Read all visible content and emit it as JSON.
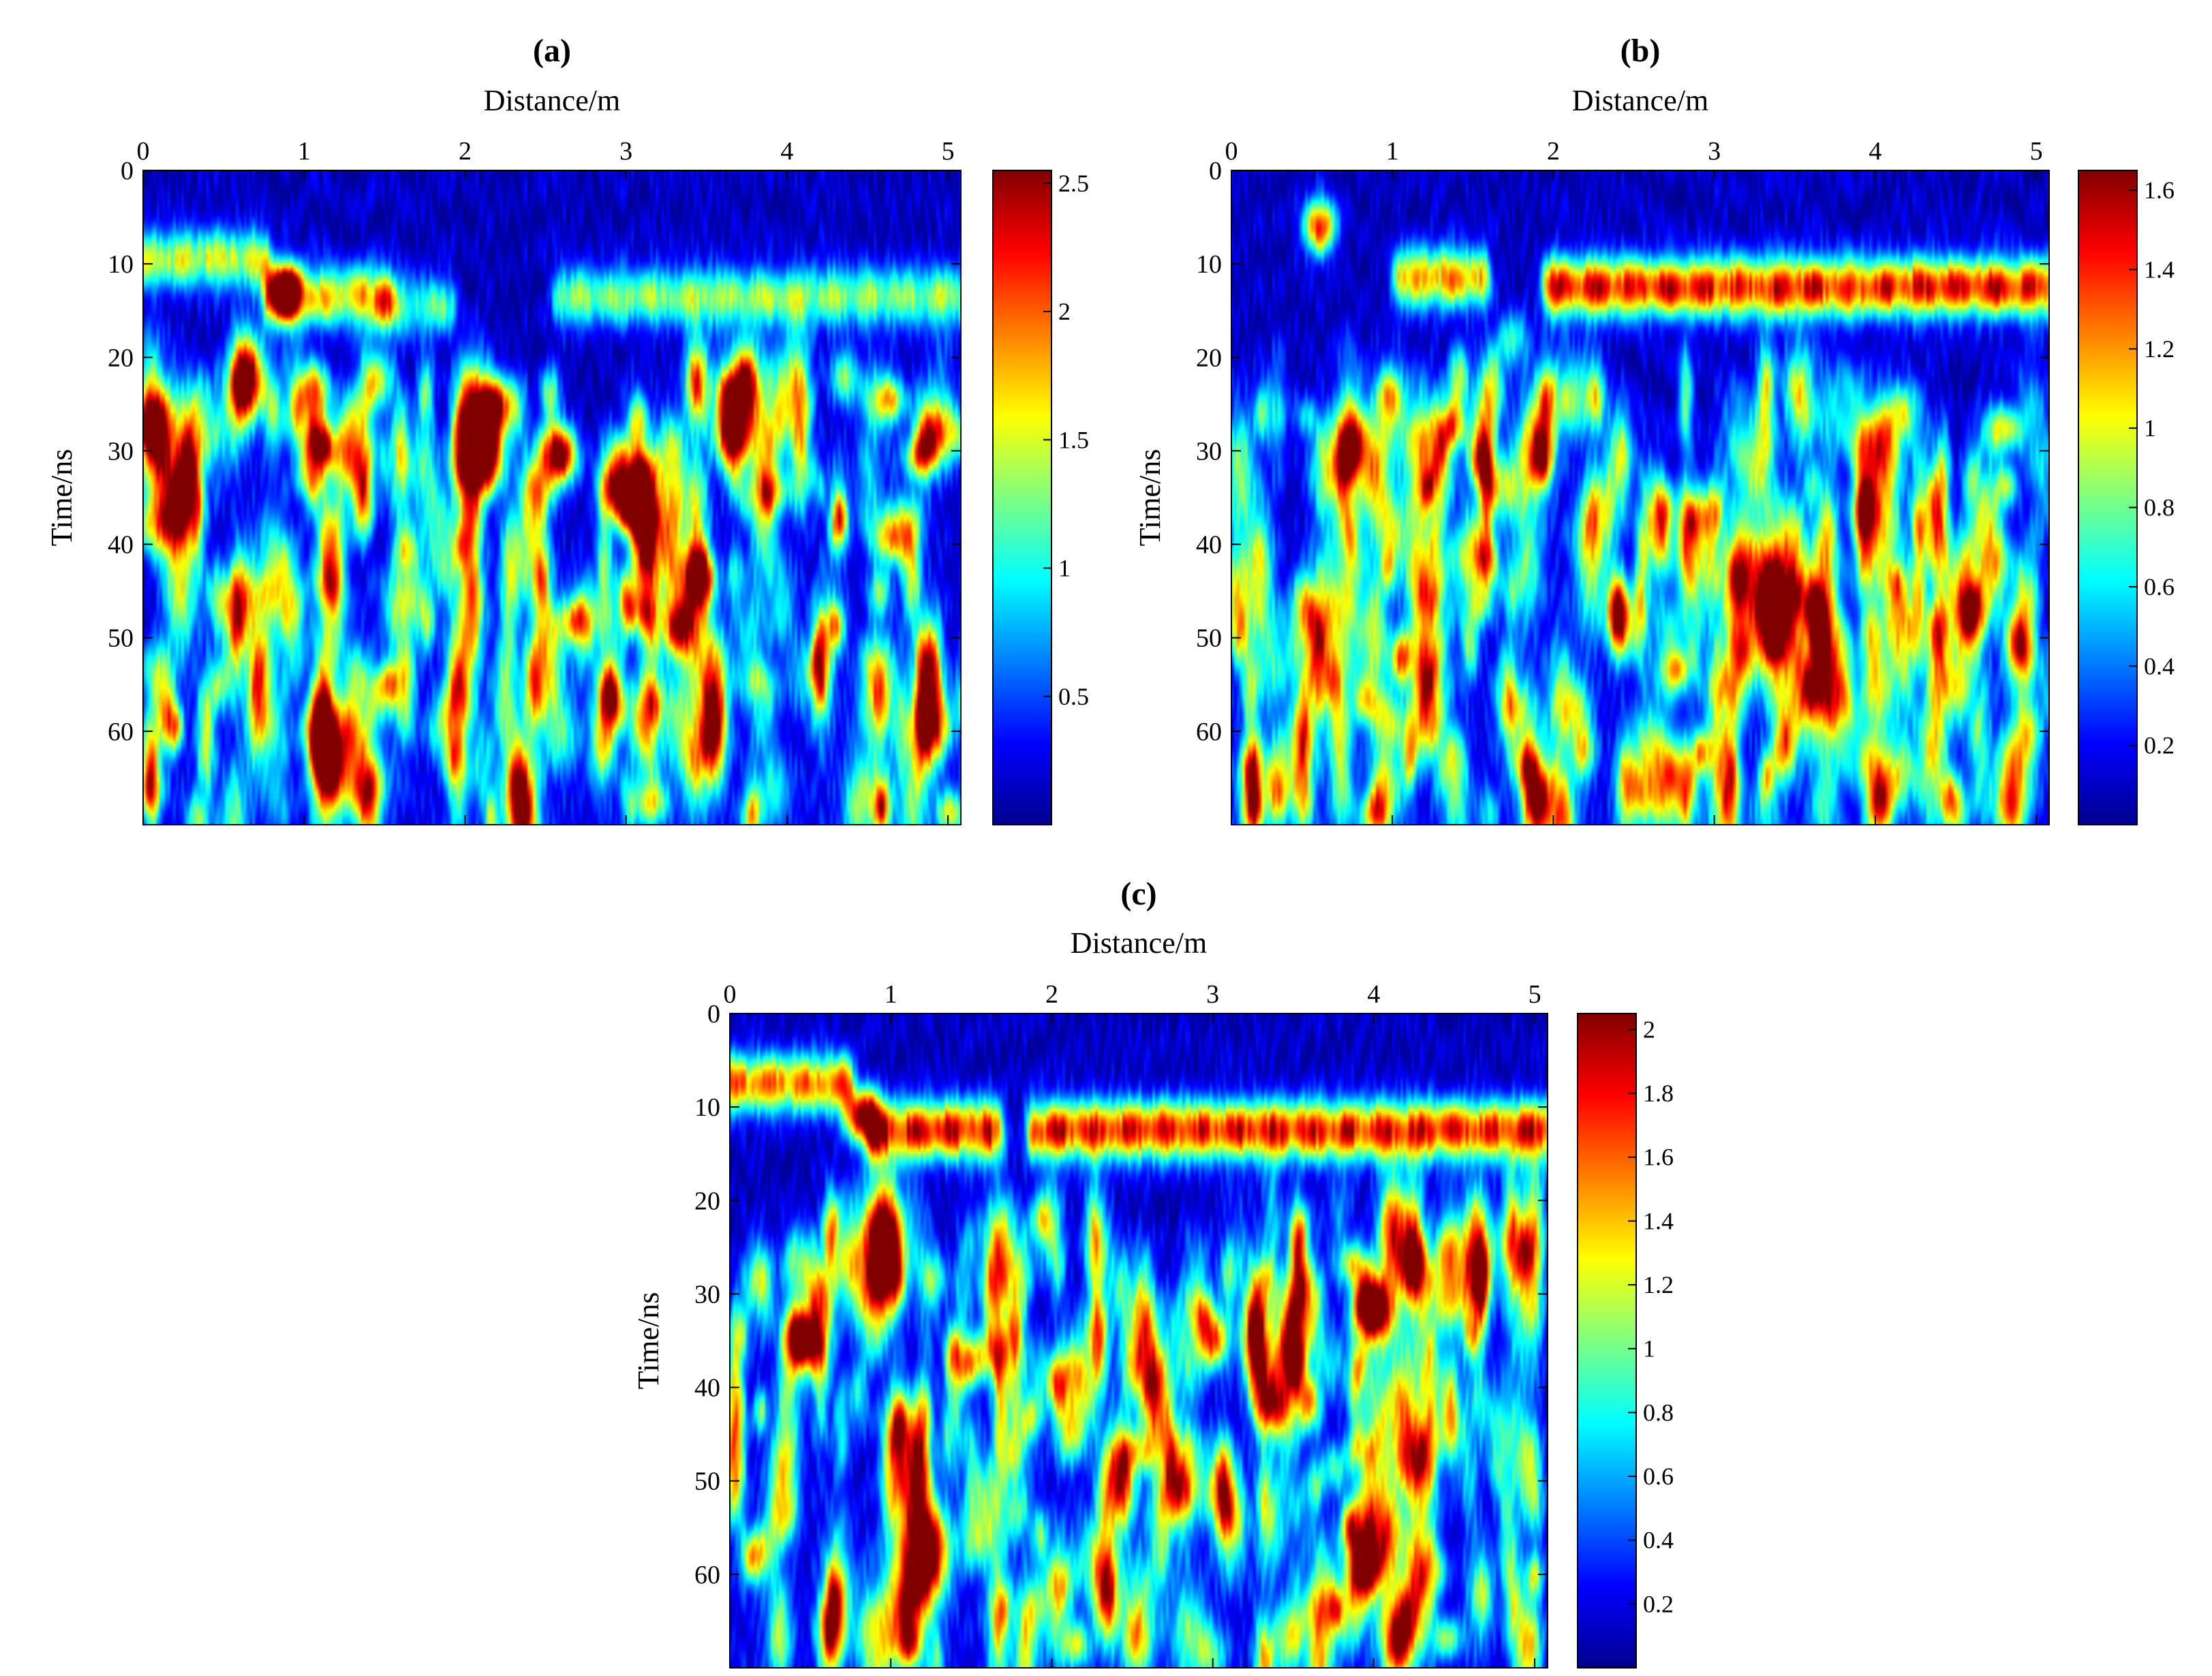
{
  "chart_data": [
    {
      "id": "a",
      "type": "heatmap",
      "title": "(a)",
      "xlabel": "Distance/m",
      "ylabel": "Time/ns",
      "x_ticks": [
        "0",
        "1",
        "2",
        "3",
        "4",
        "5"
      ],
      "y_ticks": [
        "0",
        "10",
        "20",
        "30",
        "40",
        "50",
        "60"
      ],
      "xlim": [
        0,
        5.08
      ],
      "ylim": [
        0,
        70
      ],
      "colormap": "jet",
      "colorbar": {
        "ticks": [
          "0.5",
          "1",
          "1.5",
          "2",
          "2.5"
        ],
        "range": [
          0.0,
          2.55
        ]
      },
      "features": [
        {
          "label": "reflector",
          "kind": "band",
          "x_start": 0.0,
          "x_end": 0.75,
          "y": 9.5,
          "amplitude": 1.45
        },
        {
          "label": "reflector",
          "kind": "band",
          "x_start": 0.8,
          "x_end": 1.5,
          "y": 13.5,
          "amplitude": 1.75
        },
        {
          "label": "reflector",
          "kind": "band",
          "x_start": 1.5,
          "x_end": 1.9,
          "y": 14.5,
          "amplitude": 1.1
        },
        {
          "label": "reflector",
          "kind": "band",
          "x_start": 2.6,
          "x_end": 5.08,
          "y": 13.5,
          "amplitude": 1.3
        },
        {
          "label": "target",
          "kind": "spot",
          "x": 0.88,
          "y": 13.0,
          "amplitude": 2.4
        },
        {
          "label": "target",
          "kind": "spot",
          "x": 2.2,
          "y": 25.0,
          "amplitude": 1.7
        },
        {
          "label": "target",
          "kind": "spot",
          "x": 2.6,
          "y": 30.5,
          "amplitude": 2.2
        },
        {
          "label": "target",
          "kind": "spot",
          "x": 3.05,
          "y": 36.0,
          "amplitude": 2.45
        },
        {
          "label": "target",
          "kind": "spot",
          "x": 3.45,
          "y": 43.5,
          "amplitude": 2.3
        }
      ]
    },
    {
      "id": "b",
      "type": "heatmap",
      "title": "(b)",
      "xlabel": "Distance/m",
      "ylabel": "Time/ns",
      "x_ticks": [
        "0",
        "1",
        "2",
        "3",
        "4",
        "5"
      ],
      "y_ticks": [
        "0",
        "10",
        "20",
        "30",
        "40",
        "50",
        "60"
      ],
      "xlim": [
        0,
        5.08
      ],
      "ylim": [
        0,
        70
      ],
      "colormap": "jet",
      "colorbar": {
        "ticks": [
          "0.2",
          "0.4",
          "0.6",
          "0.8",
          "1",
          "1.2",
          "1.4",
          "1.6"
        ],
        "range": [
          0.0,
          1.65
        ]
      },
      "features": [
        {
          "label": "target",
          "kind": "spot",
          "x": 0.55,
          "y": 6.0,
          "amplitude": 1.3
        },
        {
          "label": "reflector",
          "kind": "band",
          "x_start": 1.05,
          "x_end": 1.55,
          "y": 11.5,
          "amplitude": 1.2
        },
        {
          "label": "reflector",
          "kind": "band",
          "x_start": 1.98,
          "x_end": 5.08,
          "y": 12.5,
          "amplitude": 1.5
        },
        {
          "label": "target",
          "kind": "spot",
          "x": 1.75,
          "y": 18.0,
          "amplitude": 0.6
        }
      ]
    },
    {
      "id": "c",
      "type": "heatmap",
      "title": "(c)",
      "xlabel": "Distance/m",
      "ylabel": "Time/ns",
      "x_ticks": [
        "0",
        "1",
        "2",
        "3",
        "4",
        "5"
      ],
      "y_ticks": [
        "0",
        "10",
        "20",
        "30",
        "40",
        "50",
        "60"
      ],
      "xlim": [
        0,
        5.08
      ],
      "ylim": [
        0,
        70
      ],
      "colormap": "jet",
      "colorbar": {
        "ticks": [
          "0.2",
          "0.4",
          "0.6",
          "0.8",
          "1",
          "1.2",
          "1.4",
          "1.6",
          "1.8",
          "2"
        ],
        "range": [
          0.0,
          2.05
        ]
      },
      "features": [
        {
          "label": "reflector",
          "kind": "band",
          "x_start": 0.0,
          "x_end": 0.72,
          "y": 7.5,
          "amplitude": 1.6
        },
        {
          "label": "reflector",
          "kind": "band",
          "x_start": 0.9,
          "x_end": 1.65,
          "y": 12.5,
          "amplitude": 1.9
        },
        {
          "label": "reflector",
          "kind": "band",
          "x_start": 1.9,
          "x_end": 5.08,
          "y": 12.5,
          "amplitude": 1.85
        },
        {
          "label": "target",
          "kind": "spot",
          "x": 0.82,
          "y": 11.0,
          "amplitude": 1.9
        },
        {
          "label": "target",
          "kind": "spot",
          "x": 0.45,
          "y": 35.0,
          "amplitude": 0.9
        },
        {
          "label": "target",
          "kind": "spot",
          "x": 3.0,
          "y": 35.0,
          "amplitude": 1.5
        },
        {
          "label": "target",
          "kind": "spot",
          "x": 3.35,
          "y": 42.0,
          "amplitude": 1.15
        }
      ]
    }
  ]
}
